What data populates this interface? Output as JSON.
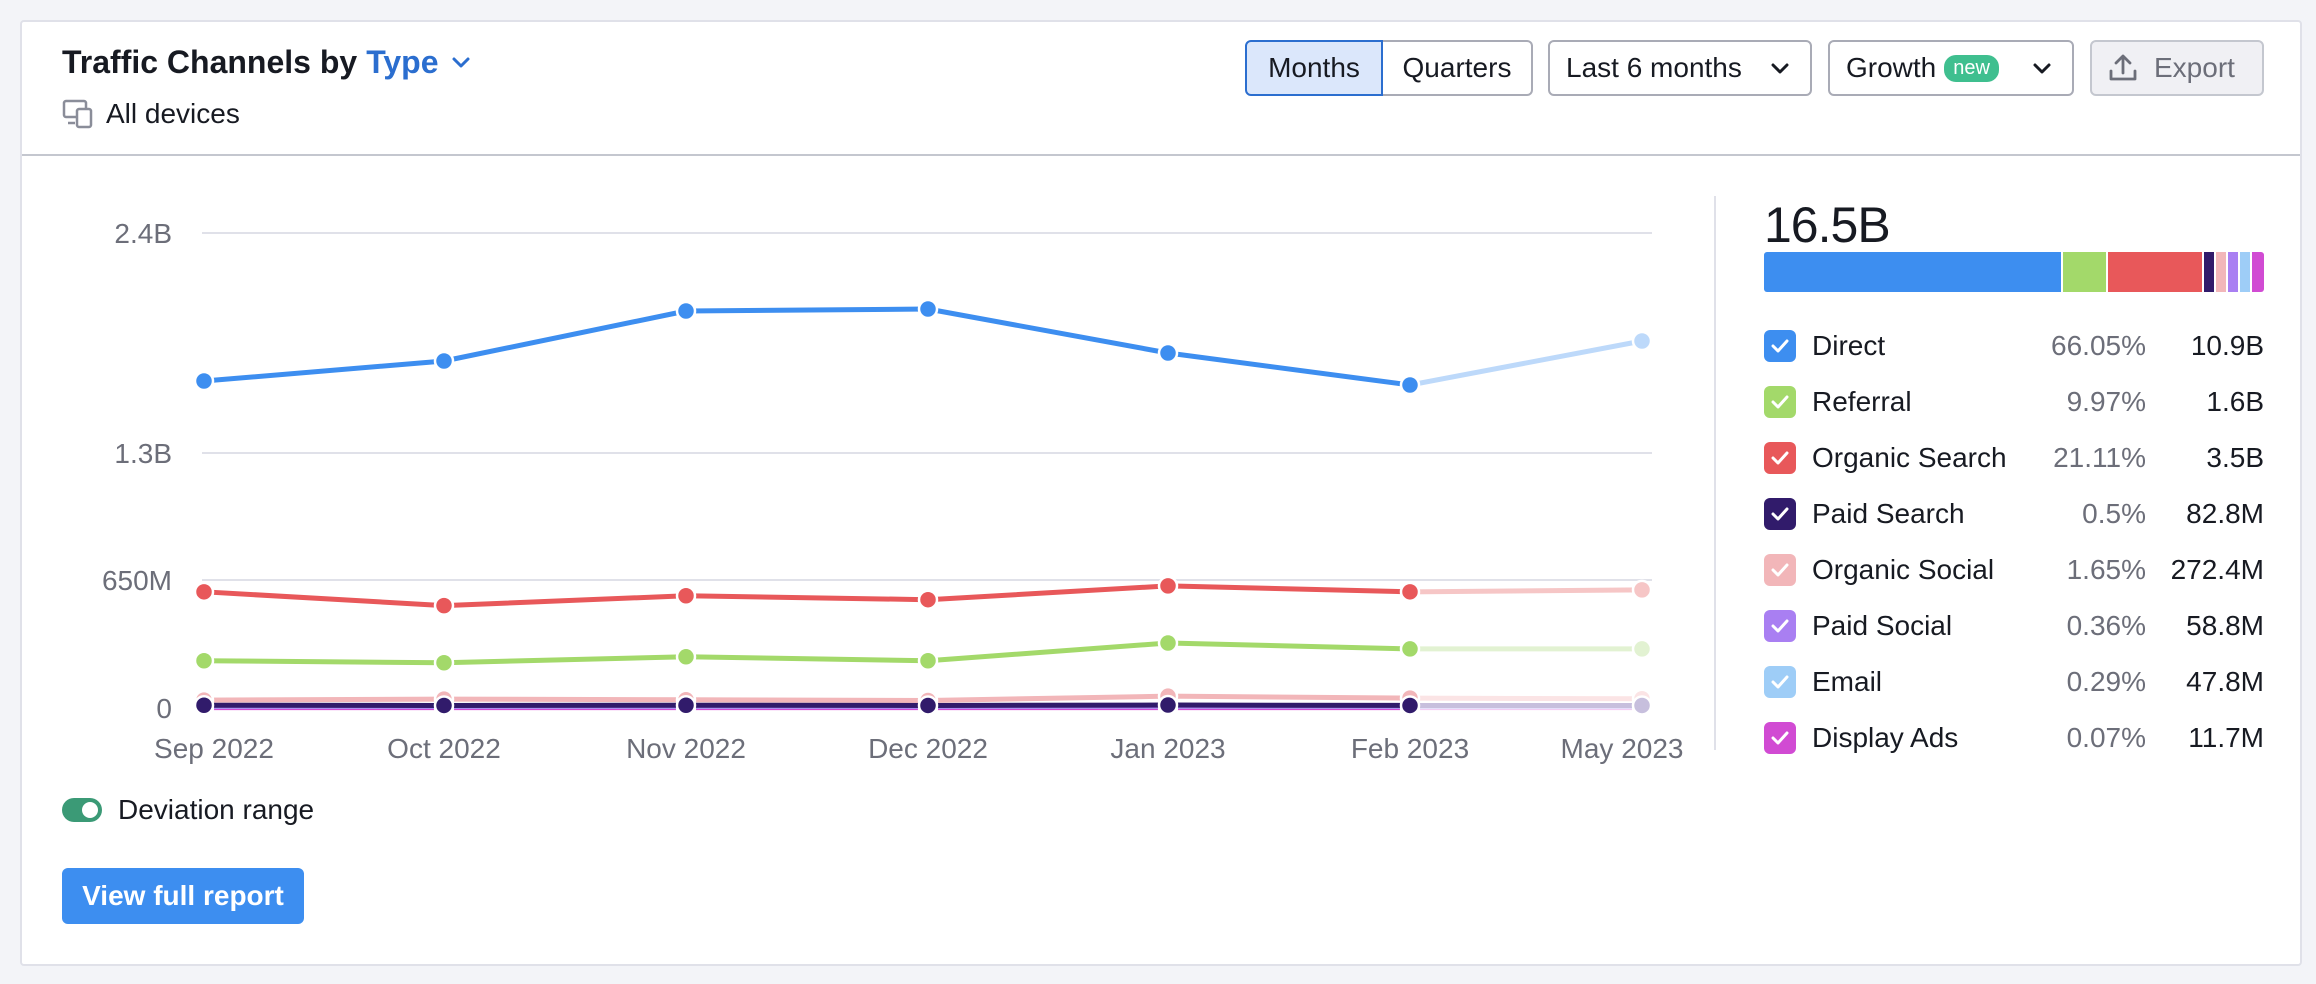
{
  "header": {
    "title_prefix": "Traffic Channels by",
    "type_label": "Type",
    "devices_label": "All devices"
  },
  "controls": {
    "months_label": "Months",
    "quarters_label": "Quarters",
    "period_label": "Last 6 months",
    "growth_label": "Growth",
    "new_badge": "new",
    "export_label": "Export",
    "selected_granularity": "Months"
  },
  "chart_data": {
    "type": "line",
    "categories": [
      "Sep 2022",
      "Oct 2022",
      "Nov 2022",
      "Dec 2022",
      "Jan 2023",
      "Feb 2023",
      "May 2023"
    ],
    "y_ticks": [
      "2.4B",
      "1.3B",
      "650M",
      "0"
    ],
    "y_tick_values": [
      2400000000,
      1300000000,
      650000000,
      0
    ],
    "grid": true,
    "last_point_projected": true,
    "series": [
      {
        "name": "Direct",
        "color": "#3d8ef0",
        "light_color": "#bdd9fa",
        "values": [
          1660000000,
          1760000000,
          2010000000,
          2020000000,
          1800000000,
          1640000000,
          1860000000
        ]
      },
      {
        "name": "Referral",
        "color": "#a3d96a",
        "light_color": "#e2f2d2",
        "values": [
          240000000,
          230000000,
          260000000,
          240000000,
          330000000,
          300000000,
          300000000
        ]
      },
      {
        "name": "Organic Search",
        "color": "#e8585a",
        "light_color": "#f6c6c6",
        "values": [
          590000000,
          520000000,
          570000000,
          550000000,
          620000000,
          590000000,
          600000000
        ]
      },
      {
        "name": "Paid Search",
        "color": "#311b6b",
        "light_color": "#c7bfdd",
        "values": [
          14000000,
          13000000,
          14000000,
          13000000,
          15000000,
          13000000,
          13000000
        ]
      },
      {
        "name": "Organic Social",
        "color": "#f2b6b9",
        "light_color": "#fbe4e5",
        "values": [
          40000000,
          45000000,
          42000000,
          38000000,
          60000000,
          50000000,
          47000000
        ]
      },
      {
        "name": "Paid Social",
        "color": "#a97ff2",
        "light_color": "#e4d9fb",
        "values": [
          10000000,
          9000000,
          10000000,
          9000000,
          11000000,
          10000000,
          9000000
        ]
      },
      {
        "name": "Email",
        "color": "#9ecdf7",
        "light_color": "#def0fd",
        "values": [
          8000000,
          8000000,
          8000000,
          8000000,
          9000000,
          8000000,
          8000000
        ]
      },
      {
        "name": "Display Ads",
        "color": "#d14bd3",
        "light_color": "#f2cdf3",
        "values": [
          2000000,
          2000000,
          2000000,
          2000000,
          2000000,
          2000000,
          2000000
        ]
      }
    ]
  },
  "summary": {
    "total": "16.5B",
    "channels": [
      {
        "name": "Direct",
        "percent": "66.05%",
        "value": "10.9B",
        "color": "#3d8ef0",
        "share": 66.05
      },
      {
        "name": "Referral",
        "percent": "9.97%",
        "value": "1.6B",
        "color": "#a3d96a",
        "share": 9.97
      },
      {
        "name": "Organic Search",
        "percent": "21.11%",
        "value": "3.5B",
        "color": "#e8585a",
        "share": 21.11
      },
      {
        "name": "Paid Search",
        "percent": "0.5%",
        "value": "82.8M",
        "color": "#311b6b",
        "share": 0.5
      },
      {
        "name": "Organic Social",
        "percent": "1.65%",
        "value": "272.4M",
        "color": "#f2b6b9",
        "share": 1.65
      },
      {
        "name": "Paid Social",
        "percent": "0.36%",
        "value": "58.8M",
        "color": "#a97ff2",
        "share": 0.36
      },
      {
        "name": "Email",
        "percent": "0.29%",
        "value": "47.8M",
        "color": "#9ecdf7",
        "share": 0.29
      },
      {
        "name": "Display Ads",
        "percent": "0.07%",
        "value": "11.7M",
        "color": "#d14bd3",
        "share": 0.07
      }
    ]
  },
  "footer": {
    "deviation_label": "Deviation range",
    "deviation_on": true,
    "report_button": "View full report"
  }
}
